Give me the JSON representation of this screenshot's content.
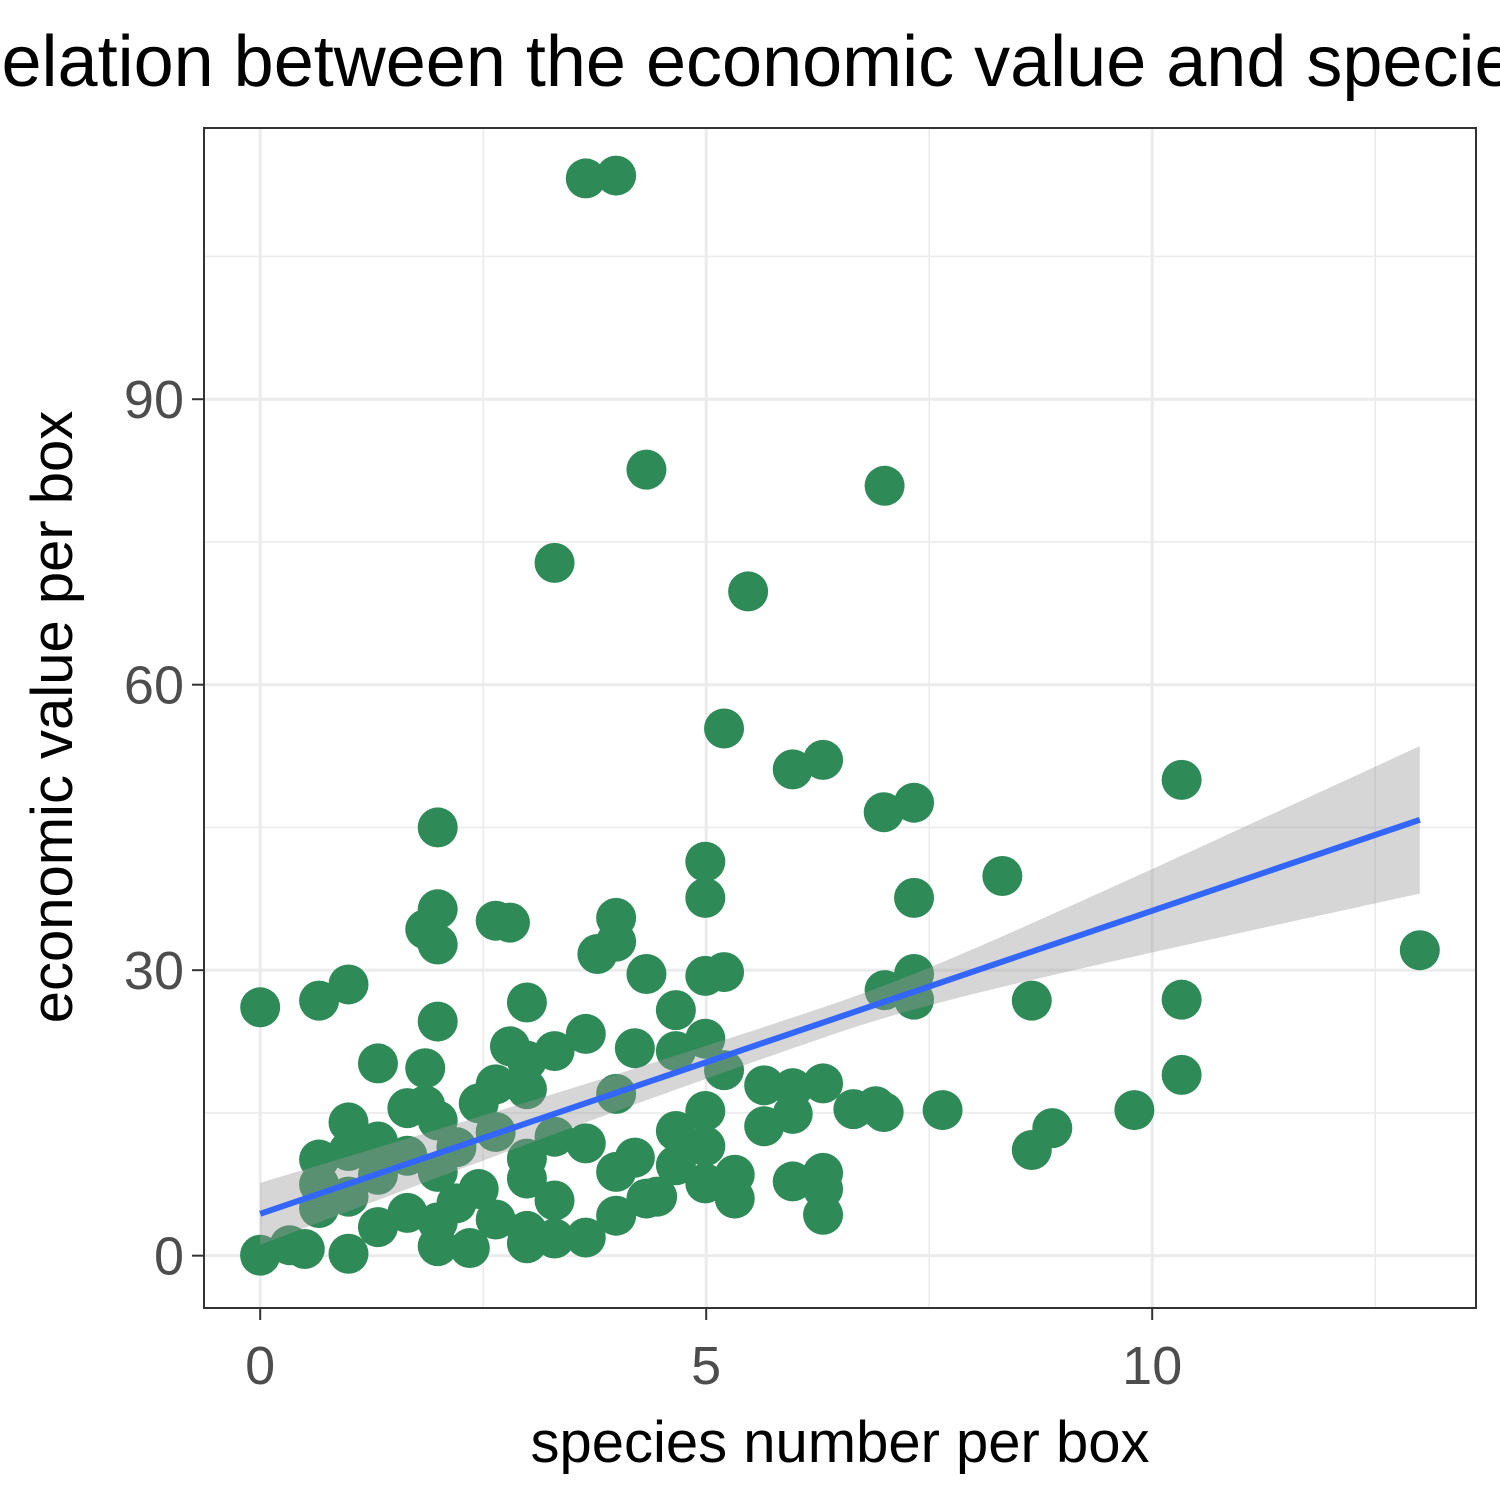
{
  "chart_data": {
    "type": "scatter",
    "title": "Relation between the economic value and species",
    "xlabel": "species number per box",
    "ylabel": "economic value per box",
    "xlim": [
      -0.63,
      13.63
    ],
    "ylim": [
      -5.5,
      118.5
    ],
    "x_ticks": [
      0,
      5,
      10
    ],
    "y_ticks": [
      0,
      30,
      60,
      90
    ],
    "x_tick_labels": [
      "0",
      "5",
      "10"
    ],
    "y_tick_labels": [
      "0",
      "30",
      "60",
      "90"
    ],
    "grid": true,
    "point_color": "#2e8b57",
    "fit_line": {
      "method": "linear regression",
      "color": "#3366ff",
      "ribbon_color": "#999999",
      "x": [
        0,
        13
      ],
      "y": [
        4.4,
        45.8
      ],
      "ci_low": [
        1.0,
        38.0
      ],
      "ci_high": [
        7.5,
        53.5
      ]
    },
    "series": [
      {
        "points": [
          [
            3.65,
            113.2
          ],
          [
            3.99,
            113.5
          ],
          [
            4.33,
            82.6
          ],
          [
            7.0,
            80.9
          ],
          [
            3.3,
            72.8
          ],
          [
            5.47,
            69.8
          ],
          [
            5.2,
            55.4
          ],
          [
            5.97,
            51.1
          ],
          [
            6.31,
            52.1
          ],
          [
            10.33,
            50.0
          ],
          [
            6.99,
            46.6
          ],
          [
            7.33,
            47.6
          ],
          [
            1.99,
            45.0
          ],
          [
            4.99,
            41.4
          ],
          [
            8.32,
            39.9
          ],
          [
            4.99,
            37.6
          ],
          [
            7.33,
            37.6
          ],
          [
            1.99,
            36.4
          ],
          [
            2.64,
            35.2
          ],
          [
            2.8,
            35.0
          ],
          [
            1.85,
            34.3
          ],
          [
            3.99,
            35.5
          ],
          [
            1.99,
            32.7
          ],
          [
            3.99,
            33.0
          ],
          [
            3.78,
            31.7
          ],
          [
            13.0,
            32.1
          ],
          [
            4.99,
            29.4
          ],
          [
            5.2,
            29.8
          ],
          [
            4.33,
            29.6
          ],
          [
            7.0,
            27.9
          ],
          [
            7.33,
            29.6
          ],
          [
            7.33,
            26.9
          ],
          [
            8.65,
            26.8
          ],
          [
            10.33,
            26.9
          ],
          [
            0.0,
            26.1
          ],
          [
            0.66,
            26.8
          ],
          [
            0.99,
            28.5
          ],
          [
            2.99,
            26.6
          ],
          [
            4.66,
            25.8
          ],
          [
            1.99,
            24.6
          ],
          [
            3.65,
            23.3
          ],
          [
            4.99,
            22.8
          ],
          [
            2.8,
            22.0
          ],
          [
            3.3,
            21.5
          ],
          [
            4.2,
            21.8
          ],
          [
            2.99,
            20.5
          ],
          [
            4.66,
            21.5
          ],
          [
            1.32,
            20.2
          ],
          [
            1.85,
            19.7
          ],
          [
            5.2,
            19.5
          ],
          [
            10.33,
            19.0
          ],
          [
            2.64,
            18.0
          ],
          [
            3.99,
            17.0
          ],
          [
            5.65,
            17.9
          ],
          [
            5.97,
            17.6
          ],
          [
            6.31,
            18.1
          ],
          [
            1.65,
            15.5
          ],
          [
            1.85,
            15.8
          ],
          [
            2.45,
            16.0
          ],
          [
            2.99,
            17.5
          ],
          [
            4.99,
            15.2
          ],
          [
            6.65,
            15.4
          ],
          [
            6.99,
            15.1
          ],
          [
            6.9,
            15.7
          ],
          [
            7.65,
            15.3
          ],
          [
            9.8,
            15.3
          ],
          [
            0.99,
            14.0
          ],
          [
            1.32,
            12.0
          ],
          [
            1.99,
            14.2
          ],
          [
            2.64,
            13.0
          ],
          [
            3.3,
            12.5
          ],
          [
            4.66,
            13.1
          ],
          [
            5.65,
            13.6
          ],
          [
            5.97,
            14.9
          ],
          [
            8.88,
            13.4
          ],
          [
            0.66,
            10.1
          ],
          [
            0.99,
            11.0
          ],
          [
            1.65,
            10.5
          ],
          [
            2.2,
            11.4
          ],
          [
            2.99,
            10.2
          ],
          [
            3.65,
            11.8
          ],
          [
            4.2,
            10.3
          ],
          [
            4.99,
            11.5
          ],
          [
            8.65,
            11.1
          ],
          [
            0.66,
            7.5
          ],
          [
            1.32,
            8.5
          ],
          [
            1.99,
            8.8
          ],
          [
            2.45,
            7.0
          ],
          [
            2.99,
            8.1
          ],
          [
            3.99,
            8.8
          ],
          [
            4.66,
            9.5
          ],
          [
            5.32,
            8.5
          ],
          [
            5.97,
            7.8
          ],
          [
            6.31,
            8.7
          ],
          [
            0.66,
            5.0
          ],
          [
            0.99,
            6.2
          ],
          [
            1.65,
            4.5
          ],
          [
            2.2,
            5.5
          ],
          [
            2.64,
            3.8
          ],
          [
            3.3,
            5.8
          ],
          [
            4.33,
            6.0
          ],
          [
            4.45,
            6.2
          ],
          [
            4.99,
            7.6
          ],
          [
            5.32,
            6.0
          ],
          [
            6.31,
            7.0
          ],
          [
            1.32,
            3.0
          ],
          [
            1.99,
            3.5
          ],
          [
            2.99,
            2.6
          ],
          [
            3.99,
            4.2
          ],
          [
            6.31,
            4.3
          ],
          [
            0.33,
            1.1
          ],
          [
            0.5,
            0.7
          ],
          [
            0.99,
            0.2
          ],
          [
            1.99,
            1.0
          ],
          [
            2.35,
            0.8
          ],
          [
            2.99,
            1.3
          ],
          [
            3.3,
            1.8
          ],
          [
            3.65,
            1.9
          ],
          [
            0.0,
            0.0
          ],
          [
            0.0,
            0.1
          ]
        ]
      }
    ]
  }
}
